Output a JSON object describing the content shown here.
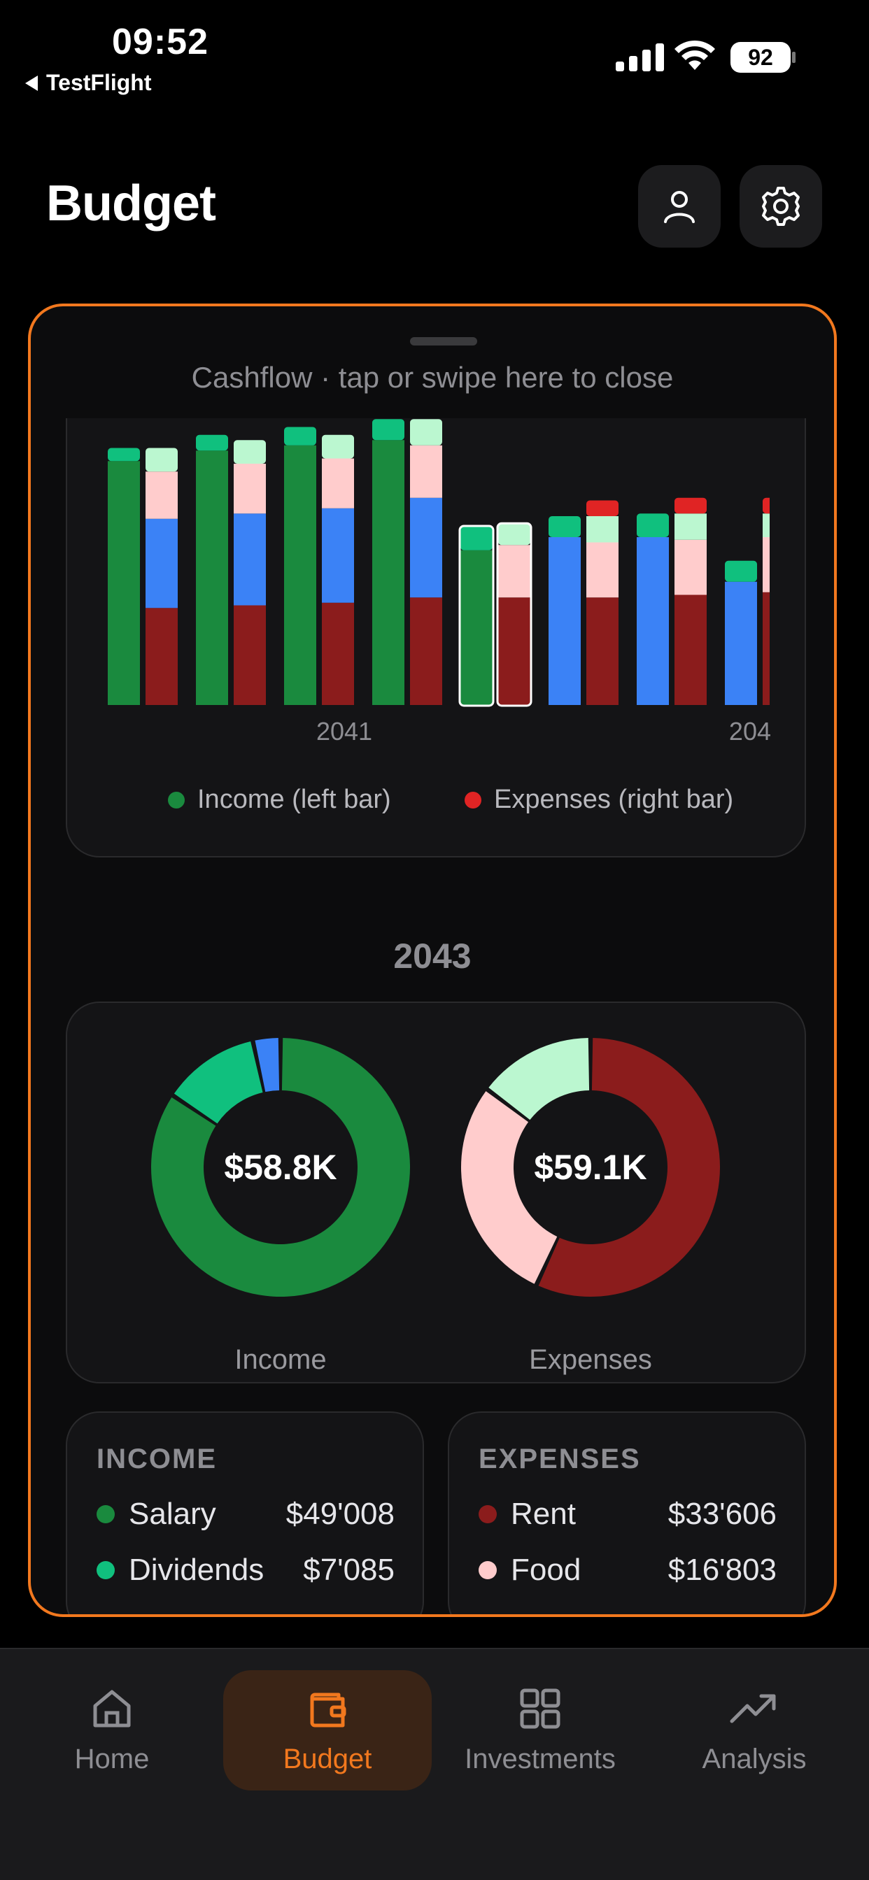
{
  "status_bar": {
    "time": "09:52",
    "back_label": "TestFlight",
    "battery": "92"
  },
  "header": {
    "title": "Budget",
    "profile_icon": "person-icon",
    "settings_icon": "gear-icon"
  },
  "sheet": {
    "hint": "Cashflow · tap or swipe here to close",
    "cashflow_chart": {
      "tick_labels": [
        "2041",
        "204"
      ],
      "legend": [
        {
          "label": "Income (left bar)",
          "color": "#1a8a3e"
        },
        {
          "label": "Expenses (right bar)",
          "color": "#e02424"
        }
      ]
    },
    "year": "2043",
    "donuts": {
      "income": {
        "total": "$58.8K",
        "label": "Income"
      },
      "expenses": {
        "total": "$59.1K",
        "label": "Expenses"
      }
    },
    "income_card": {
      "title": "INCOME",
      "rows": [
        {
          "name": "Salary",
          "amount": "$49'008",
          "color": "#1a8a3e"
        },
        {
          "name": "Dividends",
          "amount": "$7'085",
          "color": "#10c07e"
        }
      ]
    },
    "expenses_card": {
      "title": "EXPENSES",
      "rows": [
        {
          "name": "Rent",
          "amount": "$33'606",
          "color": "#8b1c1c"
        },
        {
          "name": "Food",
          "amount": "$16'803",
          "color": "#ffcccc"
        }
      ]
    }
  },
  "chart_data": [
    {
      "type": "bar",
      "stacked": true,
      "categories": [
        "",
        "",
        "",
        "",
        "",
        "",
        "",
        ""
      ],
      "x_tick_labels": [
        "2041",
        "204"
      ],
      "selected_index": 4,
      "colors": {
        "income": [
          "#1a8a3e",
          "#3b82f6",
          "#10c07e"
        ],
        "expenses": [
          "#8b1c1c",
          "#3b82f6",
          "#ffcccc",
          "#bbf7d0",
          "#e02424"
        ]
      },
      "income_bars": [
        [
          46.5,
          0,
          2.5
        ],
        [
          48.5,
          0,
          3
        ],
        [
          49.5,
          0,
          3.5
        ],
        [
          50.5,
          0,
          4
        ],
        [
          29.5,
          0,
          4.5
        ],
        [
          0,
          32,
          4
        ],
        [
          0,
          32,
          4.5
        ],
        [
          0,
          23.5,
          4
        ]
      ],
      "expense_bars": [
        [
          18.5,
          17,
          9,
          4.5,
          0
        ],
        [
          19,
          17.5,
          9.5,
          4.5,
          0
        ],
        [
          19.5,
          18,
          9.5,
          4.5,
          0
        ],
        [
          20.5,
          19,
          10,
          5,
          0
        ],
        [
          20.5,
          0,
          10,
          4,
          0
        ],
        [
          20.5,
          0,
          10.5,
          5,
          3
        ],
        [
          21,
          0,
          10.5,
          5,
          3
        ],
        [
          21.5,
          0,
          10.5,
          4.5,
          3
        ]
      ],
      "legend": [
        "Income (left bar)",
        "Expenses (right bar)"
      ],
      "ylim": [
        0,
        56
      ],
      "grid": false,
      "legend_position": "bottom"
    },
    {
      "type": "pie",
      "label": "Income",
      "total_label": "$58.8K",
      "slices": [
        {
          "name": "Salary",
          "value": 49008,
          "color": "#1a8a3e"
        },
        {
          "name": "Dividends",
          "value": 7085,
          "color": "#10c07e"
        },
        {
          "value": 2000,
          "color": "#3b82f6"
        }
      ]
    },
    {
      "type": "pie",
      "label": "Expenses",
      "total_label": "$59.1K",
      "slices": [
        {
          "name": "Rent",
          "value": 33606,
          "color": "#8b1c1c"
        },
        {
          "name": "Food",
          "value": 16803,
          "color": "#ffcccc"
        },
        {
          "value": 8691,
          "color": "#bbf7d0"
        }
      ]
    }
  ],
  "tabbar": {
    "tabs": [
      {
        "label": "Home",
        "icon": "home-icon"
      },
      {
        "label": "Budget",
        "icon": "wallet-icon",
        "active": true
      },
      {
        "label": "Investments",
        "icon": "grid-icon"
      },
      {
        "label": "Analysis",
        "icon": "trend-icon"
      }
    ]
  }
}
